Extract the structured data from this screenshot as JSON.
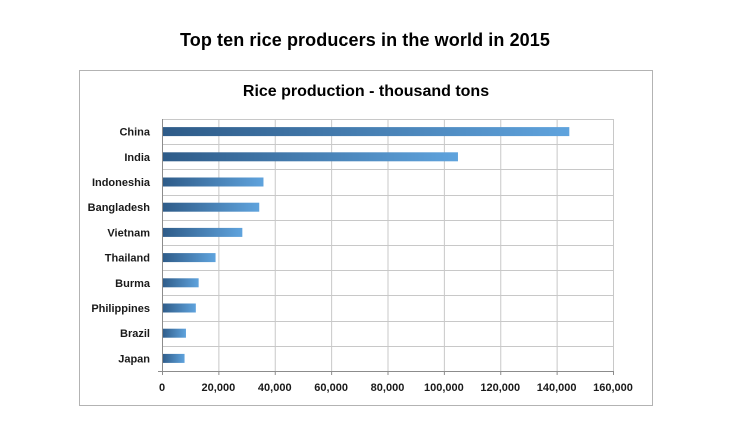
{
  "page": {
    "title": "Top ten rice producers in the world in 2015"
  },
  "chart_data": {
    "type": "bar",
    "orientation": "horizontal",
    "title": "Rice production - thousand tons",
    "xlabel": "",
    "ylabel": "",
    "categories": [
      "China",
      "India",
      "Indoneshia",
      "Bangladesh",
      "Vietnam",
      "Thailand",
      "Burma",
      "Philippines",
      "Brazil",
      "Japan"
    ],
    "values": [
      144500,
      105000,
      36000,
      34500,
      28500,
      19000,
      13000,
      12000,
      8500,
      8000
    ],
    "xlim": [
      0,
      160000
    ],
    "ticks": [
      0,
      20000,
      40000,
      60000,
      80000,
      100000,
      120000,
      140000,
      160000
    ],
    "tick_labels": [
      "0",
      "20,000",
      "40,000",
      "60,000",
      "80,000",
      "100,000",
      "120,000",
      "140,000",
      "160,000"
    ],
    "grid": true,
    "legend": "none",
    "colors": {
      "bar_start": "#2e5b88",
      "bar_end": "#5fa3dd",
      "grid": "#c8c8c8",
      "axis": "#8c8c8c"
    }
  }
}
